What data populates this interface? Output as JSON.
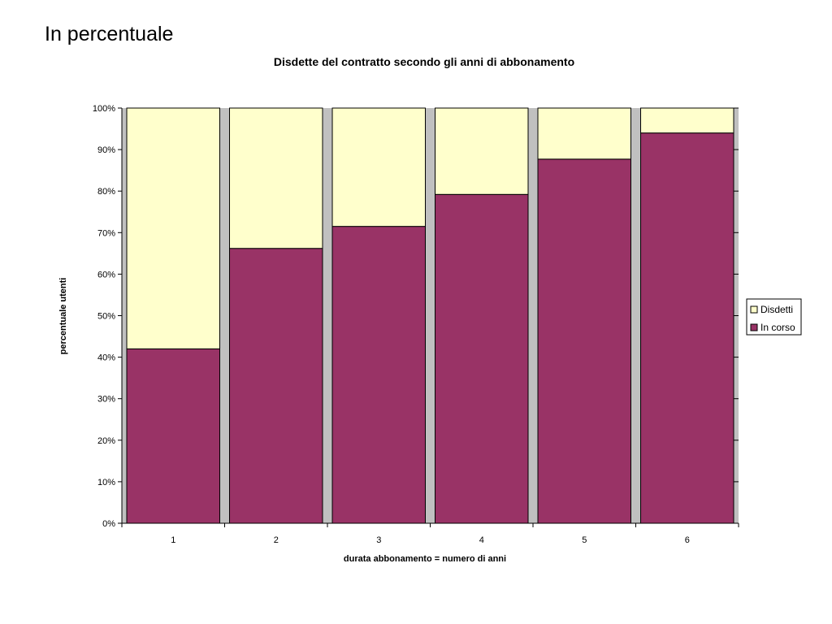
{
  "slide": {
    "title": "In percentuale"
  },
  "colors": {
    "in_corso": "#993366",
    "disdetti": "#FFFFCC",
    "plot_background": "#C0C0C0",
    "outline": "#000000"
  },
  "chart_data": {
    "type": "bar",
    "stacked": true,
    "title": "Disdette del contratto secondo gli anni di abbonamento",
    "xlabel": "durata abbonamento = numero di anni",
    "ylabel": "percentuale utenti",
    "categories": [
      "1",
      "2",
      "3",
      "4",
      "5",
      "6"
    ],
    "ylim": [
      0,
      100
    ],
    "yticks": [
      "0%",
      "10%",
      "20%",
      "30%",
      "40%",
      "50%",
      "60%",
      "70%",
      "80%",
      "90%",
      "100%"
    ],
    "series": [
      {
        "name": "In corso",
        "values": [
          42,
          66.2,
          71.5,
          79.2,
          87.7,
          94
        ]
      },
      {
        "name": "Disdetti",
        "values": [
          58,
          33.8,
          28.5,
          20.8,
          12.3,
          6
        ]
      }
    ],
    "legend": {
      "placement": "right",
      "order": [
        "Disdetti",
        "In corso"
      ]
    },
    "grid": false
  }
}
